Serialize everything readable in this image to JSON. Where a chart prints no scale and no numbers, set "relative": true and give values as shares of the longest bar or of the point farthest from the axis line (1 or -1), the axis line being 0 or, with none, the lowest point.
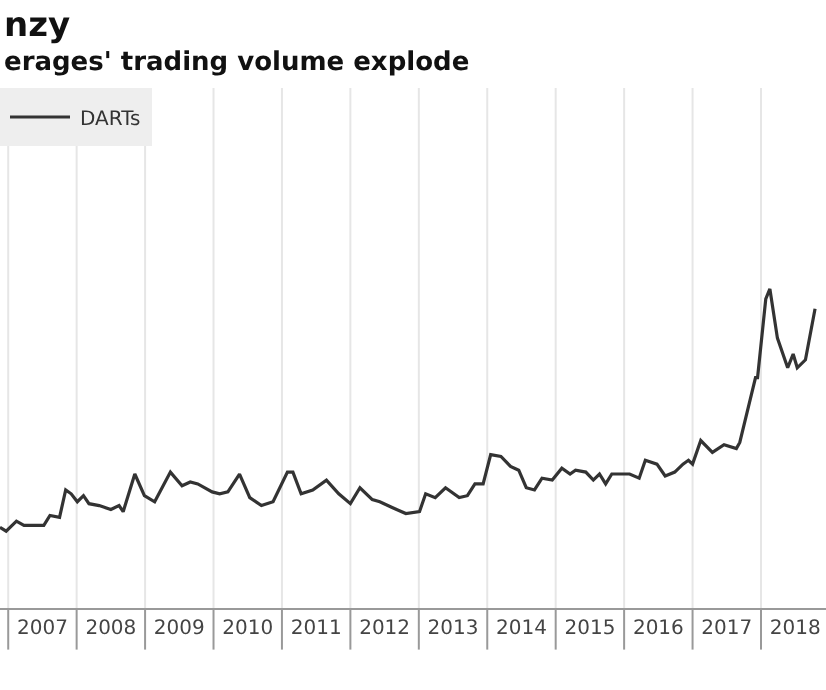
{
  "chart_data": {
    "type": "line",
    "title": "nzy",
    "subtitle": "erages' trading volume explode",
    "relative": true,
    "grid": "x",
    "legend": "top left",
    "line_style": "solid",
    "marker": "none",
    "xlim": [
      2006.88,
      2018.95
    ],
    "xticks": [
      {
        "value": 2007,
        "label": null
      },
      {
        "value": 2007.5,
        "label": "2007"
      },
      {
        "value": 2008,
        "label": null
      },
      {
        "value": 2008.5,
        "label": "2008"
      },
      {
        "value": 2009,
        "label": null
      },
      {
        "value": 2009.5,
        "label": "2009"
      },
      {
        "value": 2010,
        "label": null
      },
      {
        "value": 2010.5,
        "label": "2010"
      },
      {
        "value": 2011,
        "label": null
      },
      {
        "value": 2011.5,
        "label": "2011"
      },
      {
        "value": 2012,
        "label": null
      },
      {
        "value": 2012.5,
        "label": "2012"
      },
      {
        "value": 2013,
        "label": null
      },
      {
        "value": 2013.5,
        "label": "2013"
      },
      {
        "value": 2014,
        "label": null
      },
      {
        "value": 2014.5,
        "label": "2014"
      },
      {
        "value": 2015,
        "label": null
      },
      {
        "value": 2015.5,
        "label": "2015"
      },
      {
        "value": 2016,
        "label": null
      },
      {
        "value": 2016.5,
        "label": "2016"
      },
      {
        "value": 2017,
        "label": null
      },
      {
        "value": 2017.5,
        "label": "2017"
      },
      {
        "value": 2018,
        "label": null
      },
      {
        "value": 2018.5,
        "label": "2018"
      }
    ],
    "x": [
      2006.88,
      2006.97,
      2007.12,
      2007.23,
      2007.52,
      2007.61,
      2007.75,
      2007.84,
      2007.92,
      2008.01,
      2008.1,
      2008.18,
      2008.33,
      2008.5,
      2008.62,
      2008.68,
      2008.85,
      2008.99,
      2009.14,
      2009.37,
      2009.54,
      2009.66,
      2009.77,
      2009.98,
      2010.09,
      2010.21,
      2010.38,
      2010.53,
      2010.7,
      2010.87,
      2011.08,
      2011.16,
      2011.28,
      2011.45,
      2011.65,
      2011.83,
      2012.0,
      2012.14,
      2012.32,
      2012.43,
      2012.61,
      2012.81,
      2013.01,
      2013.1,
      2013.24,
      2013.39,
      2013.59,
      2013.71,
      2013.82,
      2013.94,
      2014.05,
      2014.2,
      2014.34,
      2014.46,
      2014.57,
      2014.69,
      2014.8,
      2014.95,
      2015.09,
      2015.21,
      2015.29,
      2015.44,
      2015.55,
      2015.64,
      2015.73,
      2015.82,
      2016.08,
      2016.22,
      2016.31,
      2016.48,
      2016.6,
      2016.74,
      2016.86,
      2016.94,
      2017.0,
      2017.12,
      2017.29,
      2017.46,
      2017.64,
      2017.69,
      2017.92,
      2017.95,
      2018.07,
      2018.13,
      2018.24,
      2018.39,
      2018.47,
      2018.53,
      2018.65,
      2018.79
    ],
    "series": [
      {
        "name": "DARTs",
        "color": "#333333",
        "values": [
          0.253,
          0.241,
          0.272,
          0.259,
          0.259,
          0.29,
          0.284,
          0.37,
          0.358,
          0.333,
          0.352,
          0.327,
          0.321,
          0.309,
          0.321,
          0.302,
          0.42,
          0.352,
          0.333,
          0.426,
          0.383,
          0.395,
          0.389,
          0.364,
          0.358,
          0.364,
          0.42,
          0.346,
          0.321,
          0.333,
          0.426,
          0.426,
          0.358,
          0.37,
          0.401,
          0.358,
          0.327,
          0.377,
          0.34,
          0.333,
          0.315,
          0.296,
          0.302,
          0.358,
          0.346,
          0.377,
          0.346,
          0.352,
          0.389,
          0.389,
          0.481,
          0.475,
          0.444,
          0.432,
          0.377,
          0.37,
          0.407,
          0.401,
          0.438,
          0.42,
          0.432,
          0.426,
          0.401,
          0.42,
          0.389,
          0.42,
          0.42,
          0.407,
          0.463,
          0.451,
          0.414,
          0.426,
          0.451,
          0.463,
          0.451,
          0.525,
          0.488,
          0.512,
          0.5,
          0.519,
          0.722,
          0.722,
          0.969,
          1,
          0.846,
          0.753,
          0.796,
          0.753,
          0.778,
          0.938
        ]
      }
    ]
  }
}
